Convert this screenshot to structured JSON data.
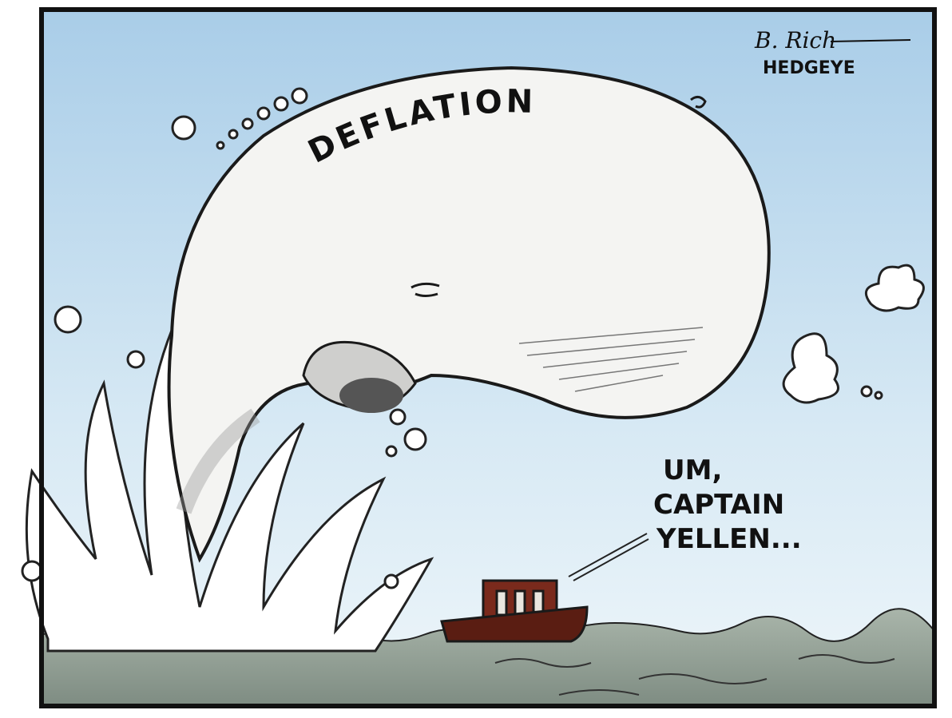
{
  "signature": {
    "artist": "B. Rich",
    "publisher": "HEDGEYE"
  },
  "whale_label": "DEFLATION",
  "speech": {
    "lines": [
      "UM,",
      "CAPTAIN",
      "YELLEN..."
    ]
  }
}
